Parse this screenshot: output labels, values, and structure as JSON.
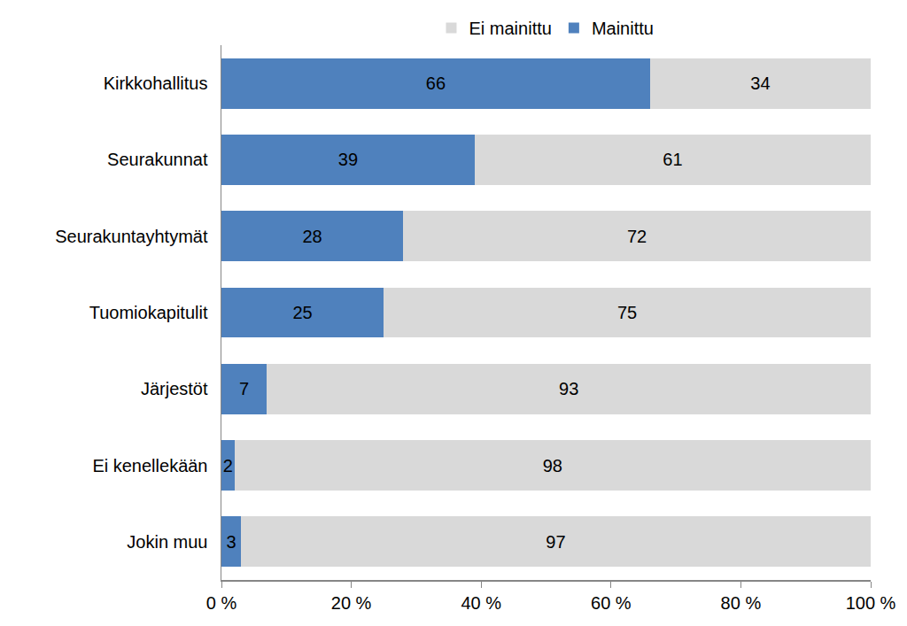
{
  "chart_data": {
    "type": "bar",
    "orientation": "horizontal",
    "stacked": true,
    "data_labels": true,
    "grid": false,
    "legend": "top",
    "categories": [
      "Kirkkohallitus",
      "Seurakunnat",
      "Seurakuntayhtymät",
      "Tuomiokapitulit",
      "Järjestöt",
      "Ei kenellekään",
      "Jokin muu"
    ],
    "series": [
      {
        "name": "Mainittu",
        "color": "#4f81bd",
        "values": [
          66,
          39,
          28,
          25,
          7,
          2,
          3
        ]
      },
      {
        "name": "Ei mainittu",
        "color": "#d9d9d9",
        "values": [
          34,
          61,
          72,
          75,
          93,
          98,
          97
        ]
      }
    ],
    "xlim": [
      0,
      100
    ],
    "xticks": [
      {
        "value": 0,
        "label": "0 %"
      },
      {
        "value": 20,
        "label": "20 %"
      },
      {
        "value": 40,
        "label": "40 %"
      },
      {
        "value": 60,
        "label": "60 %"
      },
      {
        "value": 80,
        "label": "80 %"
      },
      {
        "value": 100,
        "label": "100 %"
      }
    ]
  }
}
